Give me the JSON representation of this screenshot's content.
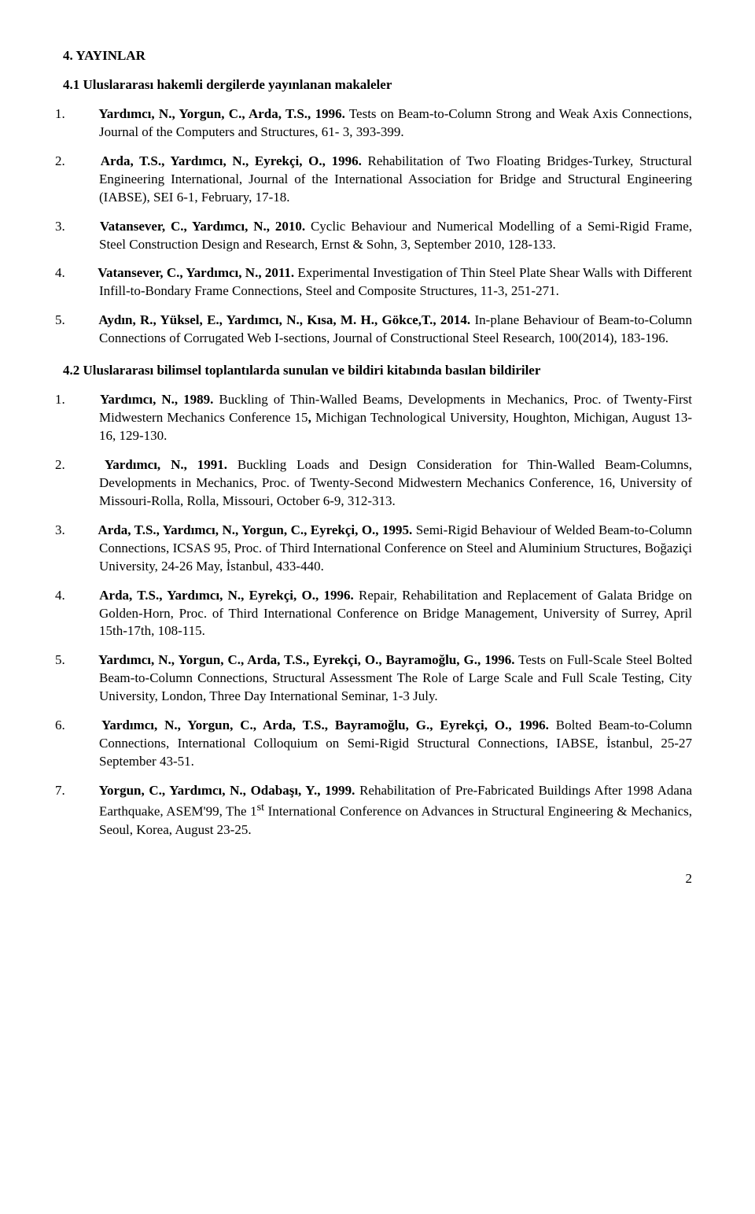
{
  "section": {
    "heading": "4. YAYINLAR",
    "sub1": {
      "heading": "4.1 Uluslararası hakemli dergilerde yayınlanan makaleler",
      "items": [
        {
          "num": "1.",
          "lead": "Yardımcı, N., Yorgun, C., Arda, T.S., 1996.",
          "rest": " Tests on Beam-to-Column Strong and Weak Axis Connections, Journal of the Computers and Structures, 61- 3, 393-399."
        },
        {
          "num": "2.",
          "lead": "Arda, T.S., Yardımcı, N., Eyrekçi, O., 1996.",
          "rest": " Rehabilitation of Two Floating Bridges-Turkey, Structural Engineering International, Journal of the International Association for Bridge and Structural Engineering (IABSE), SEI 6-1, February, 17-18."
        },
        {
          "num": "3.",
          "lead": "Vatansever, C., Yardımcı, N., 2010.",
          "rest": " Cyclic Behaviour and Numerical Modelling of a Semi-Rigid Frame, Steel Construction Design and Research, Ernst & Sohn, 3, September 2010, 128-133."
        },
        {
          "num": "4.",
          "lead": "Vatansever, C., Yardımcı, N., 2011.",
          "rest": " Experimental Investigation of Thin Steel Plate Shear Walls with Different Infill-to-Bondary Frame Connections, Steel and Composite Structures, 11-3, 251-271."
        },
        {
          "num": "5.",
          "lead": "Aydın, R., Yüksel, E., Yardımcı, N.,  Kısa, M. H., Gökce,T., 2014.",
          "rest": " In-plane Behaviour of Beam-to-Column Connections of Corrugated Web I-sections, Journal of Constructional Steel Research, 100(2014), 183-196."
        }
      ]
    },
    "sub2": {
      "heading": "4.2 Uluslararası bilimsel toplantılarda sunulan ve bildiri kitabında basılan bildiriler",
      "items": [
        {
          "num": "1.",
          "lead": "Yardımcı, N., 1989.",
          "rest": " Buckling of Thin-Walled Beams, Developments in Mechanics, Proc. of Twenty-First Midwestern Mechanics Conference 15",
          "bold2": ",",
          "rest2": " Michigan Technological University, Houghton, Michigan, August 13-16, 129-130."
        },
        {
          "num": "2.",
          "lead": "Yardımcı, N., 1991.",
          "rest": " Buckling Loads and Design Consideration for Thin-Walled Beam-Columns, Developments in Mechanics, Proc. of Twenty-Second Midwestern Mechanics Conference, 16, University of Missouri-Rolla, Rolla, Missouri, October 6-9, 312-313."
        },
        {
          "num": "3.",
          "lead": "Arda, T.S., Yardımcı, N., Yorgun, C., Eyrekçi, O., 1995.",
          "rest": " Semi-Rigid Behaviour of Welded Beam-to-Column Connections, ICSAS 95, Proc. of Third International Conference on Steel and Aluminium Structures, Boğaziçi University, 24-26 May, İstanbul, 433-440."
        },
        {
          "num": "4.",
          "lead": "Arda, T.S., Yardımcı, N., Eyrekçi, O., 1996.",
          "rest": " Repair, Rehabilitation and Replacement of Galata Bridge on Golden-Horn, Proc. of Third International Conference on Bridge Management, University of Surrey, April 15th-17th, 108-115."
        },
        {
          "num": "5.",
          "lead": "Yardımcı, N., Yorgun, C., Arda, T.S., Eyrekçi, O., Bayramoğlu, G., 1996.",
          "rest": " Tests on Full-Scale Steel Bolted Beam-to-Column Connections, Structural Assessment The Role of Large Scale and Full Scale Testing, City University, London, Three Day International Seminar, 1-3 July."
        },
        {
          "num": "6.",
          "lead": "Yardımcı, N., Yorgun, C., Arda, T.S., Bayramoğlu, G., Eyrekçi, O., 1996.",
          "rest": " Bolted Beam-to-Column Connections, International Colloquium on Semi-Rigid Structural Connections, IABSE, İstanbul,   25-27 September 43-51."
        },
        {
          "num": "7.",
          "lead": "Yorgun, C., Yardımcı, N., Odabaşı, Y., 1999.",
          "rest": " Rehabilitation of Pre-Fabricated Buildings After 1998 Adana Earthquake, ASEM'99, The 1",
          "sup": "st",
          "rest2": " International Conference on Advances in Structural Engineering & Mechanics, Seoul, Korea, August 23-25."
        }
      ]
    }
  },
  "page_number": "2"
}
